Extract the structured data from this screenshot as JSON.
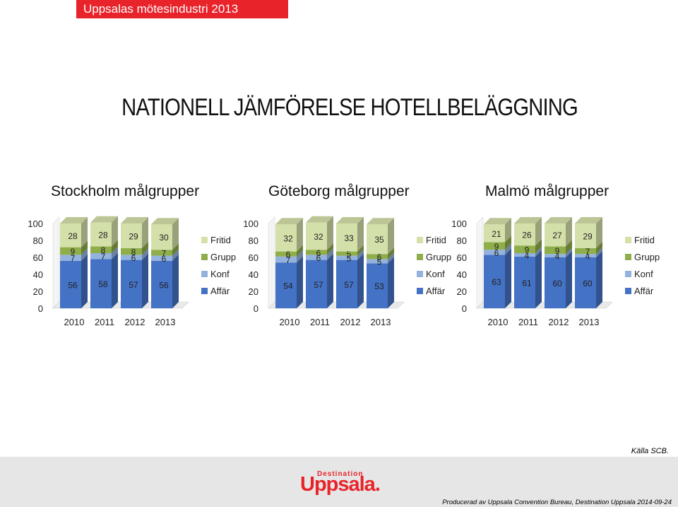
{
  "header": {
    "label": "Uppsalas mötesindustri 2013"
  },
  "title": "NATIONELL JÄMFÖRELSE HOTELLBELÄGGNING",
  "colors": {
    "Affär": "#4472c4",
    "Konf": "#93b3de",
    "Grupp": "#8fae4a",
    "Fritid": "#d4e0a9",
    "header_bg": "#e8232a",
    "footer_bg": "#e6e6e6"
  },
  "chart_data": [
    {
      "type": "bar",
      "stacked": true,
      "title": "Stockholm målgrupper",
      "categories": [
        "2010",
        "2011",
        "2012",
        "2013"
      ],
      "series": [
        {
          "name": "Affär",
          "values": [
            56,
            58,
            57,
            56
          ]
        },
        {
          "name": "Konf",
          "values": [
            7,
            7,
            6,
            6
          ]
        },
        {
          "name": "Grupp",
          "values": [
            9,
            8,
            8,
            7
          ]
        },
        {
          "name": "Fritid",
          "values": [
            28,
            28,
            29,
            30
          ]
        }
      ],
      "yticks": [
        "0",
        "20",
        "40",
        "60",
        "80",
        "100"
      ],
      "ylim": [
        0,
        100
      ],
      "legend": "right"
    },
    {
      "type": "bar",
      "stacked": true,
      "title": "Göteborg målgrupper",
      "categories": [
        "2010",
        "2011",
        "2012",
        "2013"
      ],
      "series": [
        {
          "name": "Affär",
          "values": [
            54,
            57,
            57,
            53
          ]
        },
        {
          "name": "Konf",
          "values": [
            7,
            6,
            5,
            5
          ]
        },
        {
          "name": "Grupp",
          "values": [
            6,
            6,
            5,
            6
          ]
        },
        {
          "name": "Fritid",
          "values": [
            32,
            32,
            33,
            35
          ]
        }
      ],
      "yticks": [
        "0",
        "20",
        "40",
        "60",
        "80",
        "100"
      ],
      "ylim": [
        0,
        100
      ],
      "legend": "right"
    },
    {
      "type": "bar",
      "stacked": true,
      "title": "Malmö målgrupper",
      "categories": [
        "2010",
        "2011",
        "2012",
        "2013"
      ],
      "series": [
        {
          "name": "Affär",
          "values": [
            63,
            61,
            60,
            60
          ]
        },
        {
          "name": "Konf",
          "values": [
            6,
            4,
            4,
            4
          ]
        },
        {
          "name": "Grupp",
          "values": [
            9,
            9,
            9,
            7
          ]
        },
        {
          "name": "Fritid",
          "values": [
            21,
            26,
            27,
            29
          ]
        }
      ],
      "yticks": [
        "0",
        "20",
        "40",
        "60",
        "80",
        "100"
      ],
      "ylim": [
        0,
        100
      ],
      "legend": "right"
    }
  ],
  "source": "Källa SCB.",
  "logo": {
    "top": "Destination",
    "main": "Uppsala."
  },
  "credit": "Producerad av Uppsala Convention Bureau, Destination Uppsala 2014-09-24"
}
